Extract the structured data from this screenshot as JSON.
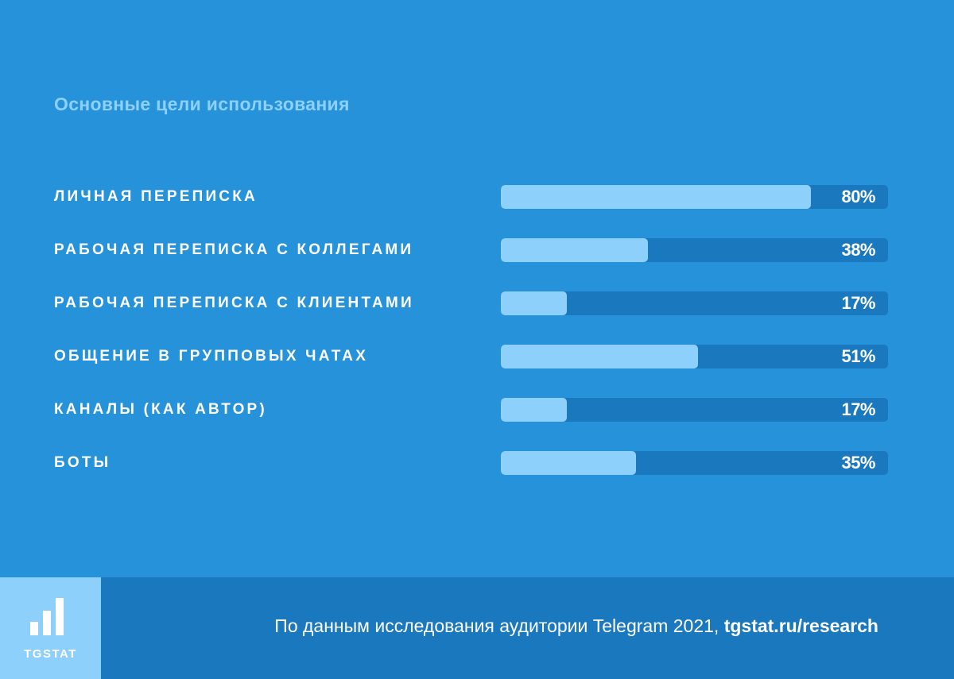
{
  "header": {
    "title": "Основные цели использования"
  },
  "chart_data": {
    "type": "bar",
    "orientation": "horizontal",
    "title": "Основные цели использования",
    "unit": "%",
    "xlim": [
      0,
      100
    ],
    "categories": [
      "ЛИЧНАЯ ПЕРЕПИСКА",
      "РАБОЧАЯ ПЕРЕПИСКА С КОЛЛЕГАМИ",
      "РАБОЧАЯ ПЕРЕПИСКА С КЛИЕНТАМИ",
      "ОБЩЕНИЕ В ГРУППОВЫХ ЧАТАХ",
      "КАНАЛЫ (КАК АВТОР)",
      "БОТЫ"
    ],
    "values": [
      80,
      38,
      17,
      51,
      17,
      35
    ],
    "value_labels": [
      "80%",
      "38%",
      "17%",
      "51%",
      "17%",
      "35%"
    ],
    "colors": {
      "fill": "#8dd0fc",
      "track": "#1a78be",
      "background": "#2592da"
    }
  },
  "footer": {
    "logo_text": "TGSTAT",
    "logo_icon": "bar-chart-icon",
    "source_text": "По данным исследования аудитории Telegram 2021, ",
    "source_link": "tgstat.ru/research"
  }
}
